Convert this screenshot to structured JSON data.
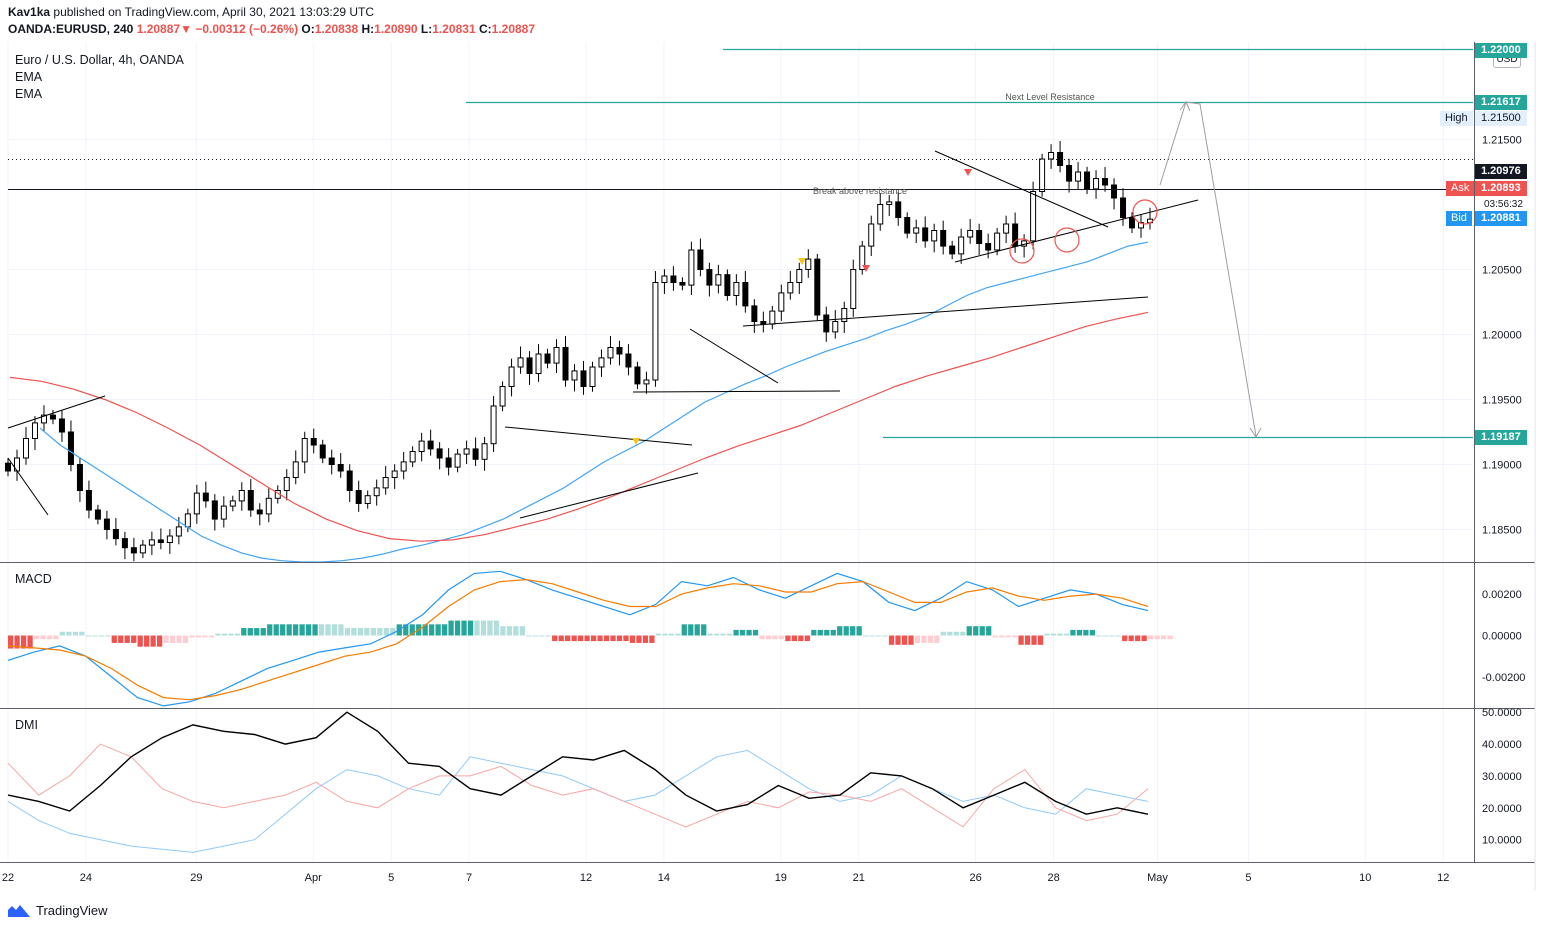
{
  "header": {
    "author": "Kav1ka",
    "published_text": "published on TradingView.com, April 30, 2021 13:03:29 UTC",
    "symbol": "OANDA:EURUSD, 240",
    "last_price": "1.20887",
    "change": "−0.00312 (−0.26%)",
    "ohlc": {
      "o_label": "O:",
      "o": "1.20838",
      "h_label": "H:",
      "h": "1.20890",
      "l_label": "L:",
      "l": "1.20831",
      "c_label": "C:",
      "c": "1.20887"
    }
  },
  "legend": {
    "title": "Euro / U.S. Dollar, 4h, OANDA",
    "ind1": "EMA",
    "ind2": "EMA"
  },
  "currency_badge": "USD",
  "price_tags": {
    "top_level": "1.22000",
    "resistance": "1.21617",
    "high_label": "High",
    "high": "1.21500",
    "dotted": "1.20976",
    "ask_label": "Ask",
    "ask": "1.20893",
    "countdown": "03:56:32",
    "bid_label": "Bid",
    "bid": "1.20881",
    "support": "1.19187"
  },
  "annotations": {
    "next_level": "Next Level Resistance",
    "break": "Break above resistance"
  },
  "panels": {
    "macd": "MACD",
    "dmi": "DMI"
  },
  "colors": {
    "teal": "#26a69a",
    "red": "#ef5350",
    "blue": "#2196f3",
    "ema_blue": "#42a5f5",
    "ema_red": "#ef5350",
    "orange": "#f57c00"
  },
  "footer": {
    "brand": "TradingView"
  },
  "chart_data": {
    "type": "candlestick",
    "title": "Euro / U.S. Dollar, 4h, OANDA",
    "price_axis": {
      "ticks": [
        "1.21500",
        "1.20500",
        "1.20000",
        "1.19500",
        "1.19000",
        "1.18500"
      ],
      "tick_values": [
        1.215,
        1.205,
        1.2,
        1.195,
        1.19,
        1.185
      ],
      "range": [
        1.1825,
        1.2225
      ]
    },
    "macd_axis": {
      "ticks": [
        "0.00200",
        "0.00000",
        "-0.00200"
      ],
      "tick_values": [
        0.002,
        0,
        -0.002
      ],
      "range": [
        -0.0035,
        0.0035
      ]
    },
    "dmi_axis": {
      "ticks": [
        "50.0000",
        "40.0000",
        "30.0000",
        "20.0000",
        "10.0000"
      ],
      "tick_values": [
        50,
        40,
        30,
        20,
        10
      ],
      "range": [
        3,
        51
      ]
    },
    "x_labels": [
      {
        "label": "22",
        "pos": 0
      },
      {
        "label": "24",
        "pos": 12
      },
      {
        "label": "29",
        "pos": 29
      },
      {
        "label": "Apr",
        "pos": 47
      },
      {
        "label": "5",
        "pos": 59
      },
      {
        "label": "7",
        "pos": 71
      },
      {
        "label": "12",
        "pos": 89
      },
      {
        "label": "14",
        "pos": 101
      },
      {
        "label": "19",
        "pos": 119
      },
      {
        "label": "21",
        "pos": 131
      },
      {
        "label": "26",
        "pos": 149
      },
      {
        "label": "28",
        "pos": 161
      },
      {
        "label": "May",
        "pos": 177
      },
      {
        "label": "5",
        "pos": 191
      },
      {
        "label": "10",
        "pos": 209
      },
      {
        "label": "12",
        "pos": 221
      }
    ],
    "closes": [
      1.1895,
      1.1905,
      1.192,
      1.1932,
      1.1938,
      1.1935,
      1.1925,
      1.19,
      1.188,
      1.1865,
      1.1858,
      1.185,
      1.1843,
      1.1836,
      1.1832,
      1.1838,
      1.1842,
      1.184,
      1.1845,
      1.1852,
      1.1862,
      1.1878,
      1.1872,
      1.1858,
      1.1868,
      1.1872,
      1.188,
      1.1865,
      1.1862,
      1.1874,
      1.188,
      1.189,
      1.1902,
      1.192,
      1.1915,
      1.1905,
      1.19,
      1.1895,
      1.188,
      1.187,
      1.1876,
      1.1882,
      1.189,
      1.1895,
      1.1902,
      1.191,
      1.1918,
      1.1912,
      1.1905,
      1.1898,
      1.1908,
      1.1912,
      1.1904,
      1.1916,
      1.1945,
      1.196,
      1.1975,
      1.1982,
      1.197,
      1.1985,
      1.1978,
      1.199,
      1.1965,
      1.1972,
      1.196,
      1.1975,
      1.1982,
      1.199,
      1.1985,
      1.1975,
      1.1962,
      1.1965,
      1.204,
      1.2045,
      1.204,
      1.2038,
      1.2065,
      1.205,
      1.2038,
      1.2046,
      1.203,
      1.204,
      1.2022,
      1.201,
      1.2008,
      1.2018,
      1.2032,
      1.204,
      1.205,
      1.2058,
      1.2015,
      1.2002,
      1.201,
      1.202,
      1.205,
      1.2068,
      1.2085,
      1.21,
      1.2102,
      1.209,
      1.2078,
      1.2082,
      1.2072,
      1.208,
      1.2068,
      1.2062,
      1.2075,
      1.208,
      1.207,
      1.2065,
      1.2078,
      1.2085,
      1.2068,
      1.2072,
      1.211,
      1.2135,
      1.214,
      1.213,
      1.2118,
      1.2125,
      1.2112,
      1.212,
      1.2115,
      1.2105,
      1.209,
      1.2082,
      1.2086,
      1.20887
    ],
    "ema_blue": [
      1.1928,
      1.1915,
      1.1905,
      1.1895,
      1.1885,
      1.1875,
      1.1865,
      1.1855,
      1.1845,
      1.1838,
      1.1832,
      1.1828,
      1.1826,
      1.1825,
      1.1825,
      1.1826,
      1.1828,
      1.1831,
      1.1835,
      1.1838,
      1.1842,
      1.1846,
      1.1852,
      1.1858,
      1.1866,
      1.1874,
      1.1882,
      1.1892,
      1.1902,
      1.191,
      1.1918,
      1.1928,
      1.1938,
      1.1948,
      1.1955,
      1.1962,
      1.1968,
      1.1975,
      1.1981,
      1.1987,
      1.1992,
      1.1997,
      1.2003,
      1.2008,
      1.2014,
      1.2022,
      1.203,
      1.2036,
      1.204,
      1.2044,
      1.2048,
      1.2052,
      1.2056,
      1.2062,
      1.2068,
      1.2071
    ],
    "ema_red": [
      1.1967,
      1.1964,
      1.1958,
      1.195,
      1.194,
      1.1928,
      1.1915,
      1.19,
      1.1885,
      1.187,
      1.1858,
      1.1849,
      1.1843,
      1.1841,
      1.1842,
      1.1846,
      1.1852,
      1.1858,
      1.1866,
      1.1875,
      1.1885,
      1.1895,
      1.1905,
      1.1914,
      1.1922,
      1.193,
      1.194,
      1.195,
      1.196,
      1.1968,
      1.1975,
      1.1982,
      1.199,
      1.1998,
      1.2006,
      1.2012,
      1.2017
    ],
    "macd_line": [
      -0.0012,
      -0.0008,
      -0.0005,
      -0.001,
      -0.002,
      -0.003,
      -0.0034,
      -0.0032,
      -0.0028,
      -0.0022,
      -0.0016,
      -0.0012,
      -0.0008,
      -0.0006,
      -0.0004,
      0.0002,
      0.001,
      0.0022,
      0.003,
      0.0031,
      0.0027,
      0.0022,
      0.0018,
      0.0014,
      0.001,
      0.0015,
      0.0026,
      0.0024,
      0.0028,
      0.0022,
      0.0018,
      0.0024,
      0.003,
      0.0026,
      0.0016,
      0.0012,
      0.0018,
      0.0026,
      0.0022,
      0.0014,
      0.0018,
      0.0022,
      0.002,
      0.0015,
      0.0012
    ],
    "signal_line": [
      -0.0005,
      -0.0006,
      -0.0007,
      -0.001,
      -0.0016,
      -0.0024,
      -0.003,
      -0.0031,
      -0.0029,
      -0.0026,
      -0.0022,
      -0.0018,
      -0.0014,
      -0.001,
      -0.0008,
      -0.0004,
      0.0004,
      0.0014,
      0.0022,
      0.0026,
      0.0027,
      0.0025,
      0.0021,
      0.0017,
      0.0014,
      0.0014,
      0.002,
      0.0023,
      0.0025,
      0.0024,
      0.0021,
      0.0021,
      0.0025,
      0.0026,
      0.0021,
      0.0016,
      0.0016,
      0.0021,
      0.0023,
      0.0019,
      0.0017,
      0.0019,
      0.002,
      0.0018,
      0.0014
    ],
    "dmi_adx": [
      24,
      22,
      19,
      27,
      36,
      42,
      46,
      44,
      43,
      40,
      42,
      50,
      44,
      34,
      33,
      26,
      24,
      30,
      36,
      35,
      38,
      32,
      24,
      19,
      21,
      27,
      23,
      24,
      31,
      30,
      26,
      20,
      24,
      28,
      22,
      18,
      20,
      18
    ],
    "dmi_plus": [
      34,
      24,
      30,
      40,
      36,
      26,
      22,
      20,
      22,
      24,
      28,
      22,
      20,
      26,
      30,
      30,
      33,
      27,
      24,
      26,
      22,
      18,
      14,
      18,
      22,
      20,
      25,
      24,
      22,
      26,
      20,
      14,
      26,
      32,
      20,
      16,
      18,
      26
    ],
    "dmi_minus": [
      22,
      16,
      12,
      10,
      8,
      7,
      6,
      8,
      10,
      18,
      26,
      32,
      30,
      26,
      24,
      36,
      34,
      32,
      30,
      26,
      22,
      24,
      30,
      36,
      38,
      32,
      26,
      22,
      24,
      30,
      26,
      22,
      24,
      20,
      18,
      26,
      24,
      22
    ]
  }
}
